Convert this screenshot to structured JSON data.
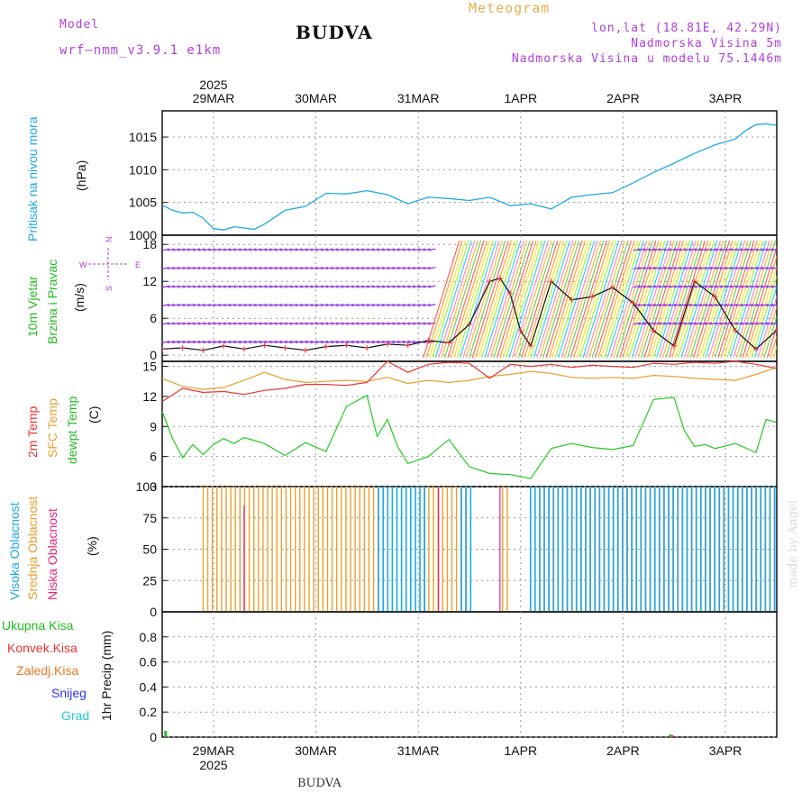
{
  "header": {
    "model_label": "Model",
    "model_name": "wrf—nmm_v3.9.1 e1km",
    "station": "BUDVA",
    "title": "Meteogram",
    "coords": "lon,lat (18.81E, 42.29N)",
    "elevation": "Nadmorska Visina 5m",
    "model_elevation": "Nadmorska Visina u modelu 75.1446m"
  },
  "colors": {
    "pressure": "#1ea8e8",
    "wind_axis": "#22bb22",
    "temp2m": "#ee3333",
    "sfc": "#e8a030",
    "dewpt": "#22cc22",
    "high_cloud": "#1ea8e8",
    "mid_cloud": "#e8a030",
    "low_cloud": "#ee2277",
    "model": "#b040d8",
    "title": "#e8b050",
    "precip_total": "#22bb22",
    "precip_conv": "#ee3333",
    "precip_frozen": "#ee7722",
    "precip_snow": "#3333ee",
    "precip_hail": "#22cccc"
  },
  "time_axis": {
    "year": "2025",
    "dates": [
      "29MAR",
      "30MAR",
      "31MAR",
      "1APR",
      "2APR",
      "3APR"
    ]
  },
  "compass": {
    "n": "N",
    "s": "S",
    "e": "E",
    "w": "W"
  },
  "panels": {
    "pressure": {
      "label1": "Pritisak na nivou mora",
      "unit": "(hPa)"
    },
    "wind": {
      "label1": "10m Vjetar",
      "label2": "Brzina i Pravac",
      "unit": "(m/s)"
    },
    "temp": {
      "label1": "2m Temp",
      "label2": "SFC Temp",
      "label3": "dewpt Temp",
      "unit": "(C)"
    },
    "cloud": {
      "label1": "Visoka Oblacnost",
      "label2": "Srednja Oblacnost",
      "label3": "Niska Oblacnost",
      "unit": "(%)"
    },
    "precip": {
      "unit": "1hr Precip (mm)"
    }
  },
  "precip_legend": [
    "Ukupna Kisa",
    "Konvek.Kisa",
    "Zaledj.Kisa",
    "Snijeg",
    "Grad"
  ],
  "footer": {
    "station": "BUDVA",
    "signature": "made by Angel"
  },
  "chart_data": [
    {
      "type": "line",
      "title": "",
      "ylabel": "Pritisak na nivou mora (hPa)",
      "ylim": [
        1000,
        1019
      ],
      "yticks": [
        1000,
        1005,
        1010,
        1015
      ],
      "xlim_days": [
        0,
        6.0
      ],
      "series": [
        {
          "name": "Pritisak na nivou mora",
          "x": [
            0,
            0.1,
            0.2,
            0.3,
            0.4,
            0.5,
            0.6,
            0.7,
            0.8,
            0.9,
            1.0,
            1.2,
            1.4,
            1.6,
            1.8,
            2.0,
            2.2,
            2.4,
            2.6,
            2.8,
            3.0,
            3.2,
            3.4,
            3.6,
            3.8,
            4.0,
            4.2,
            4.4,
            4.6,
            4.8,
            5.0,
            5.2,
            5.4,
            5.6,
            5.7,
            5.8,
            5.9,
            6.0
          ],
          "y": [
            1004.6,
            1003.8,
            1003.4,
            1003.5,
            1002.6,
            1001.0,
            1000.8,
            1001.3,
            1001.1,
            1000.9,
            1001.7,
            1003.8,
            1004.4,
            1006.4,
            1006.3,
            1006.8,
            1006.2,
            1004.8,
            1005.8,
            1005.6,
            1005.3,
            1005.8,
            1004.5,
            1004.8,
            1004.0,
            1005.8,
            1006.2,
            1006.5,
            1008.0,
            1009.6,
            1011.0,
            1012.5,
            1013.8,
            1014.7,
            1016.0,
            1016.9,
            1017.0,
            1016.8
          ]
        }
      ]
    },
    {
      "type": "line",
      "title": "",
      "ylabel": "10m Vjetar Brzina i Pravac (m/s)",
      "ylim": [
        -1,
        19.5
      ],
      "yticks": [
        0,
        6,
        12,
        18
      ],
      "annotation": "wind barbs coloured by speed",
      "series": [
        {
          "name": "Brzina",
          "x": [
            0,
            0.2,
            0.4,
            0.6,
            0.8,
            1.0,
            1.2,
            1.4,
            1.6,
            1.8,
            2.0,
            2.2,
            2.4,
            2.6,
            2.8,
            3.0,
            3.2,
            3.3,
            3.4,
            3.5,
            3.6,
            3.8,
            4.0,
            4.2,
            4.4,
            4.6,
            4.8,
            5.0,
            5.2,
            5.4,
            5.6,
            5.8,
            6.0
          ],
          "y": [
            1.0,
            1.2,
            0.8,
            1.5,
            1.0,
            1.6,
            1.2,
            0.8,
            1.4,
            1.6,
            1.2,
            1.8,
            1.6,
            2.4,
            2.0,
            5.0,
            12.0,
            12.5,
            10.0,
            4.0,
            1.5,
            12.0,
            9.0,
            9.5,
            11.0,
            8.5,
            4.0,
            1.5,
            12.0,
            9.5,
            4.0,
            1.0,
            4.0
          ]
        }
      ]
    },
    {
      "type": "line",
      "title": "",
      "ylabel": "Temp (C)",
      "ylim": [
        3,
        15.5
      ],
      "yticks": [
        3,
        6,
        9,
        12,
        15
      ],
      "series": [
        {
          "name": "2m Temp",
          "x": [
            0,
            0.2,
            0.4,
            0.6,
            0.8,
            1.0,
            1.2,
            1.4,
            1.6,
            1.8,
            2.0,
            2.2,
            2.4,
            2.6,
            2.8,
            3.0,
            3.2,
            3.4,
            3.6,
            3.8,
            4.0,
            4.2,
            4.4,
            4.6,
            4.8,
            5.0,
            5.2,
            5.4,
            5.6,
            5.8,
            6.0
          ],
          "y": [
            11.5,
            12.8,
            12.4,
            12.5,
            12.2,
            12.6,
            12.8,
            13.2,
            13.2,
            13.1,
            13.4,
            15.5,
            14.4,
            15.2,
            15.4,
            15.3,
            13.8,
            15.2,
            15.0,
            15.2,
            14.9,
            15.1,
            15.0,
            14.9,
            15.3,
            15.2,
            15.4,
            15.3,
            15.5,
            15.2,
            14.8
          ]
        },
        {
          "name": "SFC Temp",
          "x": [
            0,
            0.2,
            0.4,
            0.6,
            0.8,
            1.0,
            1.2,
            1.4,
            1.6,
            1.8,
            2.0,
            2.2,
            2.4,
            2.6,
            2.8,
            3.0,
            3.2,
            3.4,
            3.6,
            3.8,
            4.0,
            4.2,
            4.4,
            4.6,
            4.8,
            5.0,
            5.2,
            5.4,
            5.6,
            5.8,
            6.0
          ],
          "y": [
            13.8,
            13.0,
            12.7,
            12.9,
            13.6,
            14.4,
            13.7,
            13.4,
            13.5,
            13.6,
            13.5,
            13.9,
            13.3,
            13.6,
            13.4,
            13.6,
            14.0,
            14.2,
            14.5,
            14.3,
            13.9,
            13.8,
            13.9,
            13.8,
            14.1,
            14.0,
            13.8,
            13.7,
            13.6,
            14.2,
            14.9
          ]
        },
        {
          "name": "dewpt Temp",
          "x": [
            0,
            0.1,
            0.2,
            0.3,
            0.4,
            0.5,
            0.6,
            0.7,
            0.8,
            1.0,
            1.2,
            1.4,
            1.6,
            1.8,
            2.0,
            2.1,
            2.2,
            2.3,
            2.4,
            2.6,
            2.8,
            3.0,
            3.2,
            3.4,
            3.6,
            3.8,
            4.0,
            4.2,
            4.4,
            4.6,
            4.8,
            5.0,
            5.1,
            5.2,
            5.3,
            5.4,
            5.6,
            5.8,
            5.9,
            6.0
          ],
          "y": [
            10.5,
            7.8,
            5.9,
            7.2,
            6.2,
            7.2,
            7.8,
            7.3,
            7.9,
            7.3,
            6.1,
            7.4,
            6.5,
            11.0,
            12.1,
            8.0,
            9.7,
            7.0,
            5.3,
            6.0,
            7.7,
            5.0,
            4.3,
            4.2,
            3.8,
            6.8,
            7.3,
            6.9,
            6.7,
            7.1,
            11.7,
            11.9,
            8.6,
            7.0,
            7.2,
            6.8,
            7.3,
            6.4,
            9.7,
            9.4
          ]
        }
      ]
    },
    {
      "type": "bar",
      "title": "",
      "ylabel": "Oblacnost (%)",
      "ylim": [
        0,
        100
      ],
      "yticks": [
        0,
        25,
        50,
        75,
        100
      ],
      "series": [
        {
          "name": "Srednja Oblacnost",
          "x_from": 0.4,
          "x_to": 6.0,
          "value": 100,
          "gaps": [
            [
              2.15,
              2.55
            ],
            [
              3.0,
              3.3
            ],
            [
              3.4,
              3.65
            ]
          ]
        },
        {
          "name": "Visoka Oblacnost",
          "x_from": 2.1,
          "x_to": 6.0,
          "value": 100,
          "gaps": [
            [
              2.55,
              2.9
            ],
            [
              3.0,
              3.55
            ]
          ]
        },
        {
          "name": "Niska Oblacnost",
          "x": [
            0.8,
            2.7,
            3.3
          ],
          "y": [
            85,
            100,
            100
          ]
        }
      ]
    },
    {
      "type": "bar",
      "title": "",
      "ylabel": "1hr Precip (mm)",
      "ylim": [
        0,
        1.0
      ],
      "yticks": [
        0,
        0.2,
        0.4,
        0.6,
        0.8
      ],
      "series": [
        {
          "name": "Ukupna Kisa",
          "x": [
            0.02,
            4.95
          ],
          "y": [
            0.05,
            0.02
          ]
        },
        {
          "name": "Konvek.Kisa",
          "x": [
            4.97
          ],
          "y": [
            0.015
          ]
        }
      ]
    }
  ]
}
